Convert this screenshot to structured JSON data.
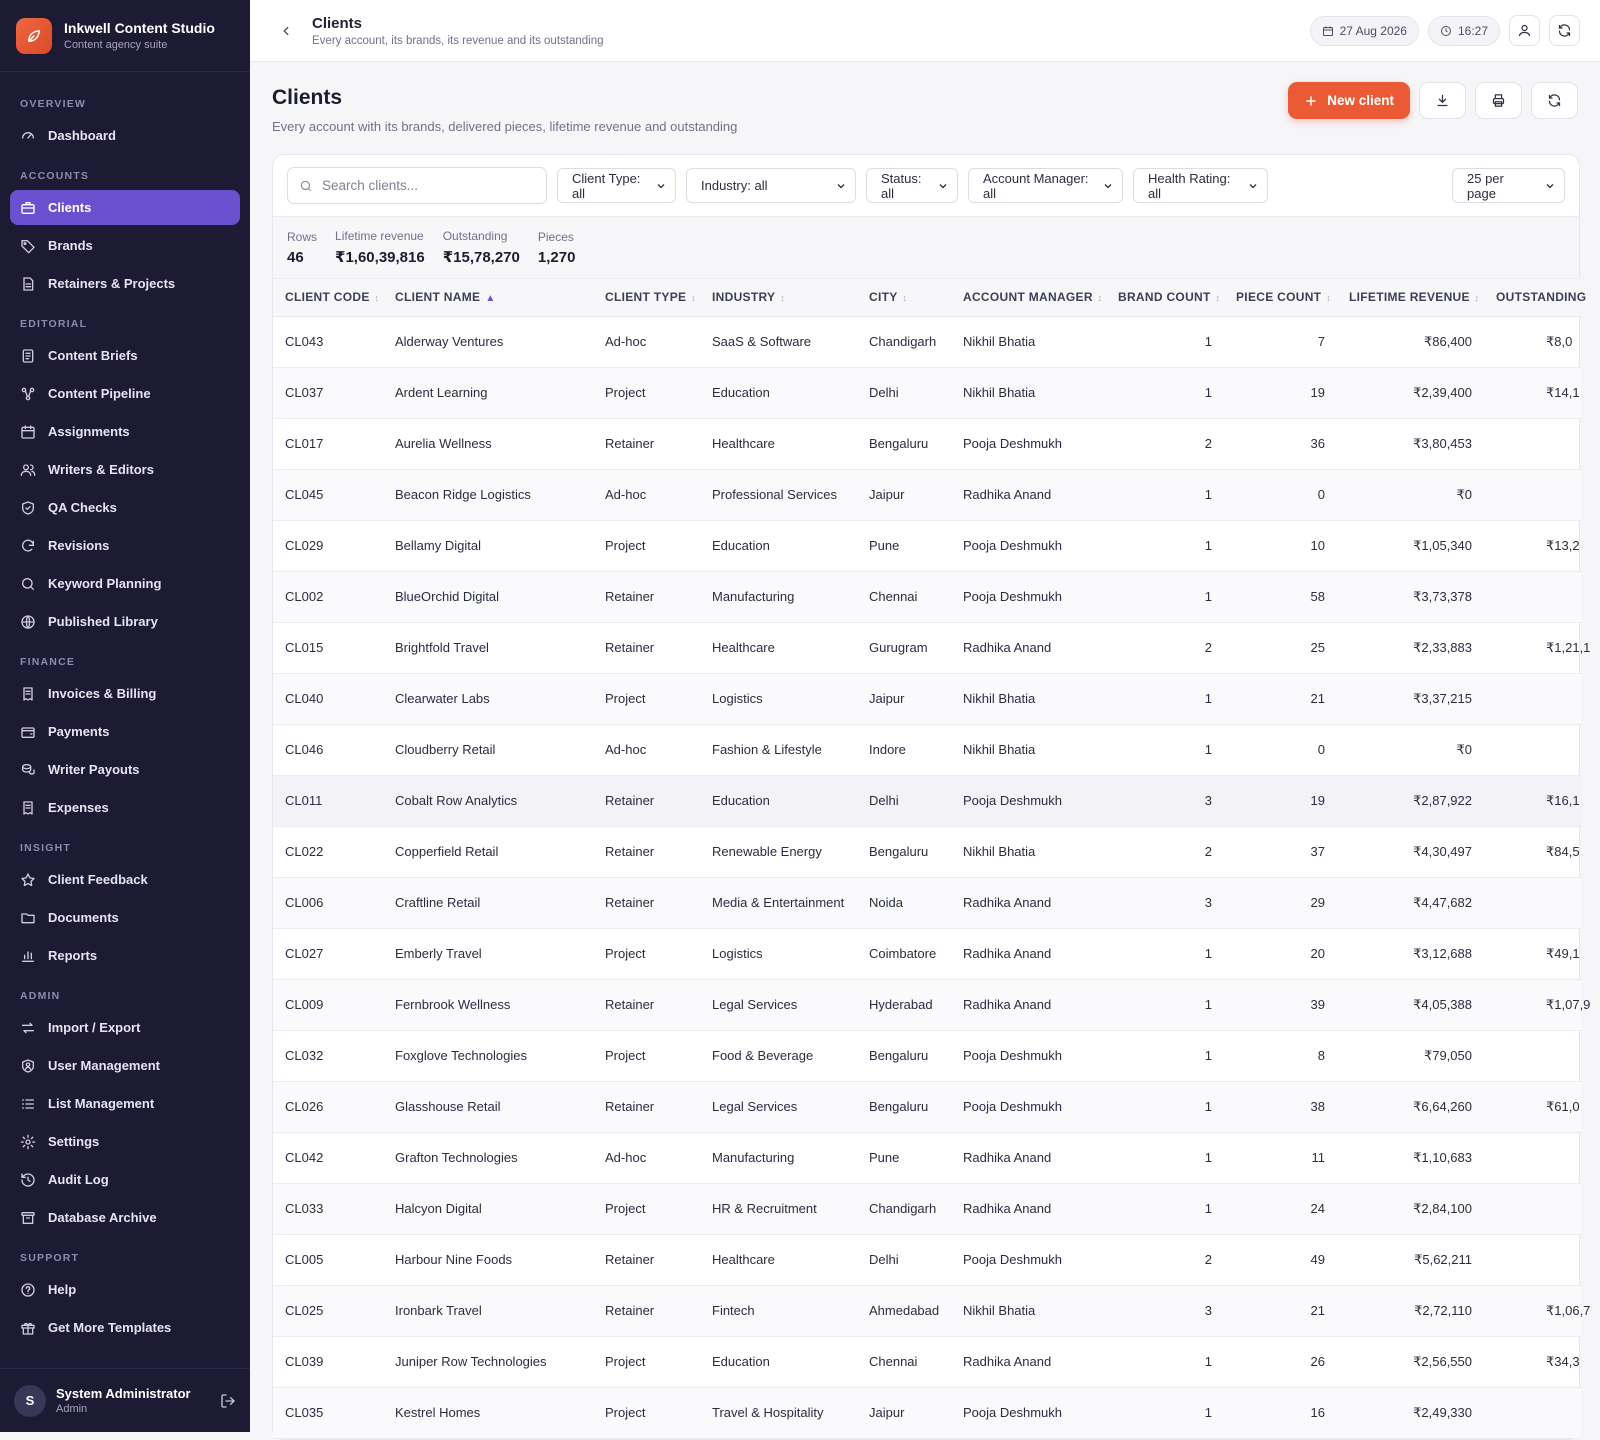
{
  "app": {
    "name": "Inkwell Content Studio",
    "tagline": "Content agency suite"
  },
  "nav": [
    {
      "section": "OVERVIEW",
      "items": [
        {
          "label": "Dashboard",
          "icon": "gauge-icon"
        }
      ]
    },
    {
      "section": "ACCOUNTS",
      "items": [
        {
          "label": "Clients",
          "icon": "briefcase-icon",
          "active": true
        },
        {
          "label": "Brands",
          "icon": "tag-icon"
        },
        {
          "label": "Retainers & Projects",
          "icon": "file-icon"
        }
      ]
    },
    {
      "section": "EDITORIAL",
      "items": [
        {
          "label": "Content Briefs",
          "icon": "document-icon"
        },
        {
          "label": "Content Pipeline",
          "icon": "workflow-icon"
        },
        {
          "label": "Assignments",
          "icon": "calendar-icon"
        },
        {
          "label": "Writers & Editors",
          "icon": "users-icon"
        },
        {
          "label": "QA Checks",
          "icon": "shield-check-icon"
        },
        {
          "label": "Revisions",
          "icon": "refresh-icon"
        },
        {
          "label": "Keyword Planning",
          "icon": "search-icon"
        },
        {
          "label": "Published Library",
          "icon": "globe-icon"
        }
      ]
    },
    {
      "section": "FINANCE",
      "items": [
        {
          "label": "Invoices & Billing",
          "icon": "receipt-icon"
        },
        {
          "label": "Payments",
          "icon": "wallet-icon"
        },
        {
          "label": "Writer Payouts",
          "icon": "coins-icon"
        },
        {
          "label": "Expenses",
          "icon": "receipt-icon"
        }
      ]
    },
    {
      "section": "INSIGHT",
      "items": [
        {
          "label": "Client Feedback",
          "icon": "star-icon"
        },
        {
          "label": "Documents",
          "icon": "folder-icon"
        },
        {
          "label": "Reports",
          "icon": "bar-chart-icon"
        }
      ]
    },
    {
      "section": "ADMIN",
      "items": [
        {
          "label": "Import / Export",
          "icon": "swap-icon"
        },
        {
          "label": "User Management",
          "icon": "user-shield-icon"
        },
        {
          "label": "List Management",
          "icon": "list-icon"
        },
        {
          "label": "Settings",
          "icon": "gear-icon"
        },
        {
          "label": "Audit Log",
          "icon": "history-icon"
        },
        {
          "label": "Database Archive",
          "icon": "archive-icon"
        }
      ]
    },
    {
      "section": "SUPPORT",
      "items": [
        {
          "label": "Help",
          "icon": "help-icon"
        },
        {
          "label": "Get More Templates",
          "icon": "gift-icon"
        }
      ]
    }
  ],
  "user": {
    "initial": "S",
    "name": "System Administrator",
    "role": "Admin"
  },
  "topbar": {
    "title": "Clients",
    "subtitle": "Every account, its brands, its revenue and its outstanding",
    "date": "27 Aug 2026",
    "time": "16:27"
  },
  "page": {
    "title": "Clients",
    "subtitle": "Every account with its brands, delivered pieces, lifetime revenue and outstanding",
    "new_label": "New client"
  },
  "filters": {
    "search_placeholder": "Search clients...",
    "client_type": "Client Type: all",
    "industry": "Industry: all",
    "status": "Status: all",
    "account_manager": "Account Manager: all",
    "health_rating": "Health Rating: all",
    "per_page": "25 per page"
  },
  "stats": [
    {
      "label": "Rows",
      "value": "46"
    },
    {
      "label": "Lifetime revenue",
      "value": "₹1,60,39,816"
    },
    {
      "label": "Outstanding",
      "value": "₹15,78,270"
    },
    {
      "label": "Pieces",
      "value": "1,270"
    }
  ],
  "columns": [
    "CLIENT CODE",
    "CLIENT NAME",
    "CLIENT TYPE",
    "INDUSTRY",
    "CITY",
    "ACCOUNT MANAGER",
    "BRAND COUNT",
    "PIECE COUNT",
    "LIFETIME REVENUE",
    "OUTSTANDING"
  ],
  "rows": [
    [
      "CL043",
      "Alderway Ventures",
      "Ad-hoc",
      "SaaS & Software",
      "Chandigarh",
      "Nikhil Bhatia",
      "1",
      "7",
      "₹86,400",
      "₹8,0"
    ],
    [
      "CL037",
      "Ardent Learning",
      "Project",
      "Education",
      "Delhi",
      "Nikhil Bhatia",
      "1",
      "19",
      "₹2,39,400",
      "₹14,1"
    ],
    [
      "CL017",
      "Aurelia Wellness",
      "Retainer",
      "Healthcare",
      "Bengaluru",
      "Pooja Deshmukh",
      "2",
      "36",
      "₹3,80,453",
      ""
    ],
    [
      "CL045",
      "Beacon Ridge Logistics",
      "Ad-hoc",
      "Professional Services",
      "Jaipur",
      "Radhika Anand",
      "1",
      "0",
      "₹0",
      ""
    ],
    [
      "CL029",
      "Bellamy Digital",
      "Project",
      "Education",
      "Pune",
      "Pooja Deshmukh",
      "1",
      "10",
      "₹1,05,340",
      "₹13,2"
    ],
    [
      "CL002",
      "BlueOrchid Digital",
      "Retainer",
      "Manufacturing",
      "Chennai",
      "Pooja Deshmukh",
      "1",
      "58",
      "₹3,73,378",
      ""
    ],
    [
      "CL015",
      "Brightfold Travel",
      "Retainer",
      "Healthcare",
      "Gurugram",
      "Radhika Anand",
      "2",
      "25",
      "₹2,33,883",
      "₹1,21,1"
    ],
    [
      "CL040",
      "Clearwater Labs",
      "Project",
      "Logistics",
      "Jaipur",
      "Nikhil Bhatia",
      "1",
      "21",
      "₹3,37,215",
      ""
    ],
    [
      "CL046",
      "Cloudberry Retail",
      "Ad-hoc",
      "Fashion & Lifestyle",
      "Indore",
      "Nikhil Bhatia",
      "1",
      "0",
      "₹0",
      ""
    ],
    [
      "CL011",
      "Cobalt Row Analytics",
      "Retainer",
      "Education",
      "Delhi",
      "Pooja Deshmukh",
      "3",
      "19",
      "₹2,87,922",
      "₹16,1"
    ],
    [
      "CL022",
      "Copperfield Retail",
      "Retainer",
      "Renewable Energy",
      "Bengaluru",
      "Nikhil Bhatia",
      "2",
      "37",
      "₹4,30,497",
      "₹84,5"
    ],
    [
      "CL006",
      "Craftline Retail",
      "Retainer",
      "Media & Entertainment",
      "Noida",
      "Radhika Anand",
      "3",
      "29",
      "₹4,47,682",
      ""
    ],
    [
      "CL027",
      "Emberly Travel",
      "Project",
      "Logistics",
      "Coimbatore",
      "Radhika Anand",
      "1",
      "20",
      "₹3,12,688",
      "₹49,1"
    ],
    [
      "CL009",
      "Fernbrook Wellness",
      "Retainer",
      "Legal Services",
      "Hyderabad",
      "Radhika Anand",
      "1",
      "39",
      "₹4,05,388",
      "₹1,07,9"
    ],
    [
      "CL032",
      "Foxglove Technologies",
      "Project",
      "Food & Beverage",
      "Bengaluru",
      "Pooja Deshmukh",
      "1",
      "8",
      "₹79,050",
      ""
    ],
    [
      "CL026",
      "Glasshouse Retail",
      "Retainer",
      "Legal Services",
      "Bengaluru",
      "Pooja Deshmukh",
      "1",
      "38",
      "₹6,64,260",
      "₹61,0"
    ],
    [
      "CL042",
      "Grafton Technologies",
      "Ad-hoc",
      "Manufacturing",
      "Pune",
      "Radhika Anand",
      "1",
      "11",
      "₹1,10,683",
      ""
    ],
    [
      "CL033",
      "Halcyon Digital",
      "Project",
      "HR & Recruitment",
      "Chandigarh",
      "Radhika Anand",
      "1",
      "24",
      "₹2,84,100",
      ""
    ],
    [
      "CL005",
      "Harbour Nine Foods",
      "Retainer",
      "Healthcare",
      "Delhi",
      "Pooja Deshmukh",
      "2",
      "49",
      "₹5,62,211",
      ""
    ],
    [
      "CL025",
      "Ironbark Travel",
      "Retainer",
      "Fintech",
      "Ahmedabad",
      "Nikhil Bhatia",
      "3",
      "21",
      "₹2,72,110",
      "₹1,06,7"
    ],
    [
      "CL039",
      "Juniper Row Technologies",
      "Project",
      "Education",
      "Chennai",
      "Radhika Anand",
      "1",
      "26",
      "₹2,56,550",
      "₹34,3"
    ],
    [
      "CL035",
      "Kestrel Homes",
      "Project",
      "Travel & Hospitality",
      "Jaipur",
      "Pooja Deshmukh",
      "1",
      "16",
      "₹2,49,330",
      ""
    ]
  ],
  "highlighted_row": 9,
  "colors": {
    "sidebar": "#1d1a33",
    "accent": "#6b4fcf",
    "primary": "#ea5a34"
  }
}
